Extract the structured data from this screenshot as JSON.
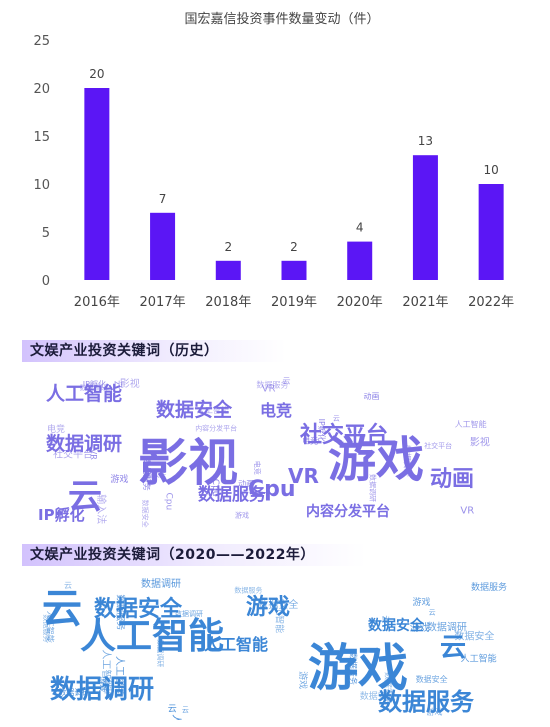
{
  "chart_data": {
    "type": "bar",
    "title": "国宏嘉信投资事件数量变动（件）",
    "categories": [
      "2016年",
      "2017年",
      "2018年",
      "2019年",
      "2020年",
      "2021年",
      "2022年"
    ],
    "values": [
      20,
      7,
      2,
      2,
      4,
      13,
      10
    ],
    "ylim": [
      0,
      25
    ],
    "yticks": [
      0,
      5,
      10,
      15,
      20,
      25
    ],
    "bar_color": "#5b16f5",
    "grid": false,
    "data_labels": true
  },
  "sections": {
    "history_title": "文娱产业投资关键词（历史）",
    "recent_title": "文娱产业投资关键词（2020——2022年）"
  },
  "colors": {
    "history_cloud": "#7a6ee3",
    "recent_cloud": "#3b86d6"
  },
  "wordclouds": {
    "history": {
      "main": [
        "游戏",
        "影视",
        "云",
        "社交平台",
        "数据安全",
        "人工智能",
        "数据调研",
        "动画",
        "数据服务",
        "内容分发平台",
        "电竞",
        "IP孵化",
        "Cpu",
        "VR"
      ],
      "extra": [
        "电竞",
        "VR",
        "Cpu",
        "输入法",
        "影视",
        "游戏",
        "云",
        "数据服务",
        "内容分发平台",
        "社交平台",
        "数据调研",
        "IP孵化",
        "人工智能",
        "数据安全",
        "动画",
        "VR",
        "云",
        "Cpu",
        "电竞",
        "影视",
        "输入法",
        "游戏",
        "数据安全",
        "社交平台",
        "数据服务",
        "人工智能",
        "云",
        "VR",
        "动画",
        "IP孵化",
        "数据调研",
        "电竞"
      ]
    },
    "recent": {
      "main": [
        "游戏",
        "人工智能",
        "云",
        "数据安全",
        "数据调研",
        "数据服务",
        "游戏",
        "云",
        "人工智能",
        "数据安全"
      ],
      "extra": [
        "人工智能",
        "数据调研",
        "云",
        "游戏",
        "数据服务",
        "数据安全",
        "人工智能",
        "云",
        "游戏",
        "数据调研",
        "数据服务",
        "数据安全",
        "人工智能",
        "游戏",
        "云",
        "数据服务",
        "数据调研",
        "数据安全",
        "人工智能",
        "云",
        "游戏",
        "数据安全",
        "数据服务",
        "数据调研",
        "云",
        "人工智能",
        "游戏",
        "数据服务",
        "数据安全",
        "数据调研",
        "云",
        "人工智能"
      ]
    }
  }
}
